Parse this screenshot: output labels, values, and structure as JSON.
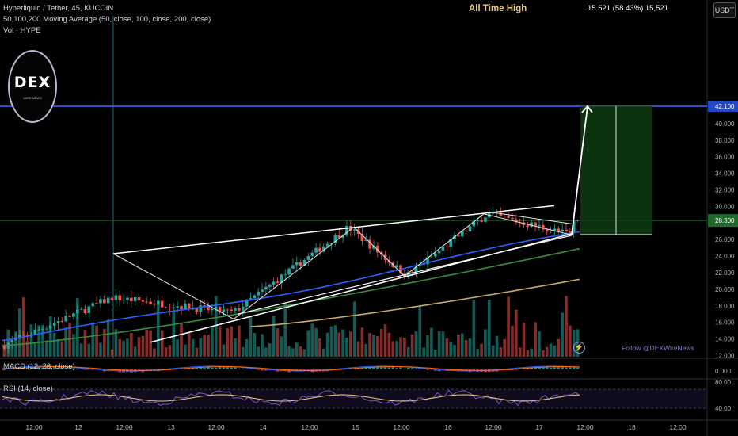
{
  "header": {
    "symbol_line": "Hyperliquid / Tether, 45, KUCOIN",
    "ma_line": "50,100,200 Moving Average (50, close, 100, close, 200, close)",
    "vol_line": "Vol · HYPE",
    "currency_button": "USDT"
  },
  "annotations": {
    "ath_label": "All Time High",
    "measure_label": "15.521 (58.43%) 15,521",
    "follow_label": "Follow @DEXWireNews",
    "logo_text": "DEX",
    "logo_subtext": "WIRE NEWS"
  },
  "panes": {
    "macd_label": "MACD (12, 26, close)",
    "rsi_label": "RSI (14, close)"
  },
  "colors": {
    "up": "#26a69a",
    "down": "#ef5350",
    "ma50": "#2962ff",
    "ma100": "#388e3c",
    "ma200": "#c8a96a",
    "ath_line": "#3d6bff",
    "target_box": "#0e3b12",
    "current_price": "#1f6b2e"
  },
  "chart_data": {
    "type": "candlestick",
    "price_axis": {
      "ticks": [
        "12.000",
        "14.000",
        "16.000",
        "18.000",
        "20.000",
        "22.000",
        "24.000",
        "26.000",
        "28.000",
        "30.000",
        "32.000",
        "34.000",
        "36.000",
        "38.000",
        "40.000"
      ],
      "current_price": 28.3,
      "ath_price": 42.1
    },
    "time_axis": {
      "ticks": [
        "12:00",
        "12",
        "12:00",
        "13",
        "12:00",
        "14",
        "12:00",
        "15",
        "12:00",
        "16",
        "12:00",
        "17",
        "12:00",
        "18",
        "12:00"
      ]
    },
    "pattern": "rising wedge with zigzag and projected breakout to all-time high",
    "wedge": {
      "upper": [
        [
          0.0,
          24.3
        ],
        [
          1.0,
          30.1
        ]
      ],
      "lower": [
        [
          0.0,
          13.6
        ],
        [
          1.0,
          26.7
        ]
      ]
    },
    "zigzag": [
      24.3,
      16.4,
      27.5,
      21.6,
      29.1,
      26.6
    ],
    "projection": {
      "from": 26.6,
      "to": 42.1,
      "change": "15.521 (58.43%)"
    },
    "target_range": [
      26.6,
      42.1
    ],
    "moving_averages": [
      {
        "name": "MA 50",
        "start": 13.8,
        "end": 26.8
      },
      {
        "name": "MA 100",
        "start": 13.2,
        "end": 24.9
      },
      {
        "name": "MA 200",
        "start": 15.5,
        "end": 21.2
      }
    ],
    "macd_axis": [
      "0.000"
    ],
    "rsi_axis": [
      "80.00",
      "40.00"
    ]
  }
}
